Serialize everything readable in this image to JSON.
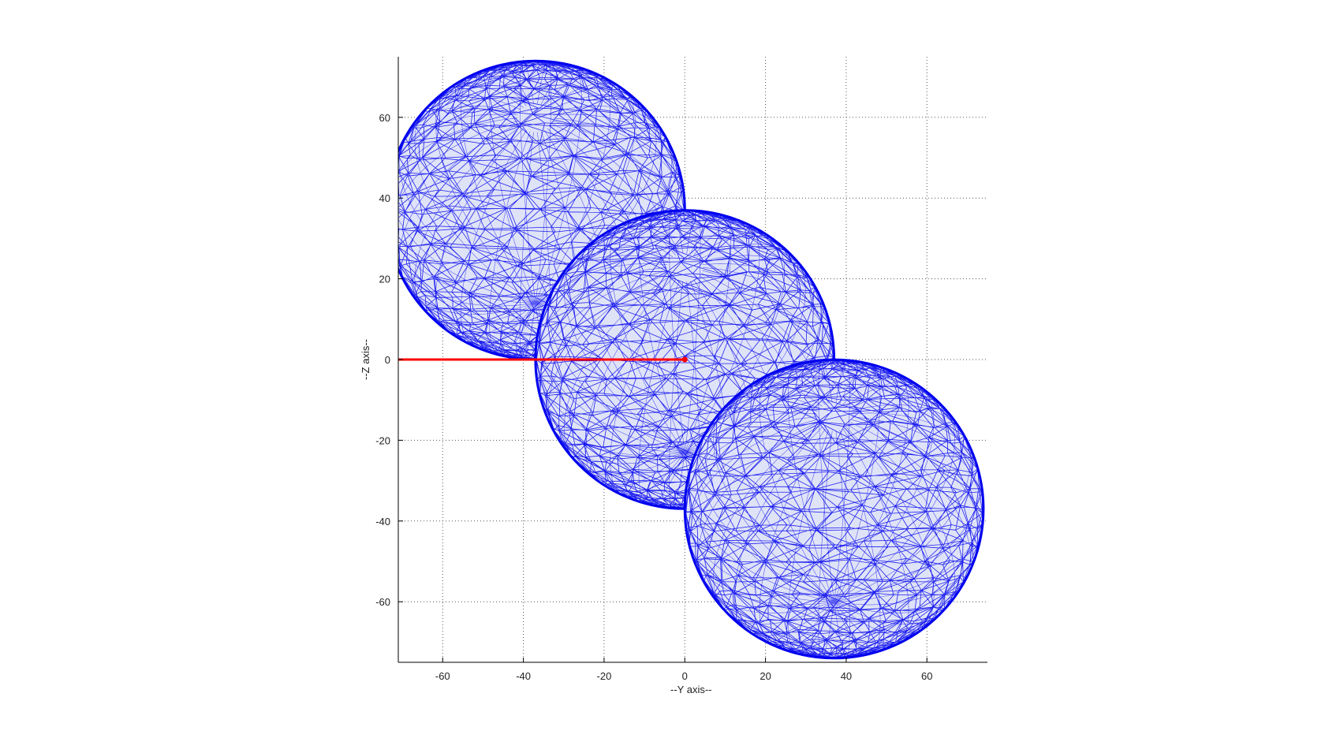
{
  "chart_data": {
    "type": "scatter",
    "title": "",
    "xlabel": "--Y axis--",
    "ylabel": "--Z axis--",
    "xlim": [
      -71,
      75
    ],
    "ylim": [
      -75,
      75
    ],
    "xticks": [
      -60,
      -40,
      -20,
      0,
      20,
      40,
      60
    ],
    "yticks": [
      -60,
      -40,
      -20,
      0,
      20,
      40,
      60
    ],
    "xtick_labels": [
      "-60",
      "-40",
      "-20",
      "0",
      "20",
      "40",
      "60"
    ],
    "ytick_labels": [
      "-60",
      "-40",
      "-20",
      "0",
      "20",
      "40",
      "60"
    ],
    "grid": true,
    "grid_style": "dotted",
    "series": [
      {
        "shape": "sphere-mesh",
        "color": "#0000ee",
        "spheres": [
          {
            "center": [
              -37,
              37
            ],
            "radius": 37
          },
          {
            "center": [
              0,
              0
            ],
            "radius": 37
          },
          {
            "center": [
              37,
              -37
            ],
            "radius": 37
          }
        ]
      },
      {
        "shape": "line",
        "color": "#ff0000",
        "x": [
          -71,
          0
        ],
        "y": [
          0,
          0
        ]
      }
    ]
  }
}
